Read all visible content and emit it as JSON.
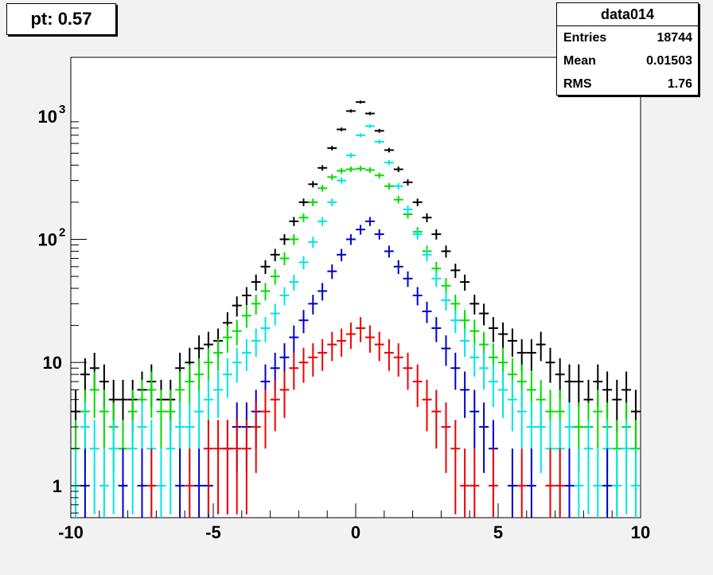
{
  "title_box": {
    "text": "pt: 0.57"
  },
  "stats_box": {
    "title": "data014",
    "rows": [
      {
        "label": "Entries",
        "value": "18744"
      },
      {
        "label": "Mean",
        "value": "0.01503"
      },
      {
        "label": "RMS",
        "value": "1.76"
      }
    ]
  },
  "chart_data": {
    "type": "scatter",
    "style": "histogram-errorbars",
    "title": "",
    "xlabel": "",
    "ylabel": "",
    "xlim": [
      -10,
      10
    ],
    "ylim": [
      0.55,
      3000
    ],
    "yscale": "log",
    "bin_width": 0.333,
    "x_ticks": [
      "-10",
      "-5",
      "0",
      "5",
      "10"
    ],
    "y_ticks": [
      {
        "base": "1",
        "exp": "",
        "value": 1
      },
      {
        "base": "10",
        "exp": "",
        "value": 10
      },
      {
        "base": "10",
        "exp": "2",
        "value": 100
      },
      {
        "base": "10",
        "exp": "3",
        "value": 1000
      }
    ],
    "grid": false,
    "legend": "none",
    "series": [
      {
        "color": "#000000",
        "points": [
          [
            -9.83,
            4
          ],
          [
            -9.5,
            8
          ],
          [
            -9.17,
            9
          ],
          [
            -8.83,
            7
          ],
          [
            -8.5,
            5
          ],
          [
            -8.17,
            5
          ],
          [
            -7.83,
            5
          ],
          [
            -7.5,
            6
          ],
          [
            -7.17,
            7
          ],
          [
            -6.83,
            5
          ],
          [
            -6.5,
            5
          ],
          [
            -6.17,
            9
          ],
          [
            -5.83,
            10
          ],
          [
            -5.5,
            13
          ],
          [
            -5.17,
            14
          ],
          [
            -4.83,
            15
          ],
          [
            -4.5,
            21
          ],
          [
            -4.17,
            29
          ],
          [
            -3.83,
            35
          ],
          [
            -3.5,
            45
          ],
          [
            -3.17,
            60
          ],
          [
            -2.83,
            75
          ],
          [
            -2.5,
            100
          ],
          [
            -2.17,
            140
          ],
          [
            -1.83,
            200
          ],
          [
            -1.5,
            280
          ],
          [
            -1.17,
            380
          ],
          [
            -0.83,
            550
          ],
          [
            -0.5,
            780
          ],
          [
            -0.17,
            1100
          ],
          [
            0.17,
            1300
          ],
          [
            0.5,
            1050
          ],
          [
            0.83,
            760
          ],
          [
            1.17,
            530
          ],
          [
            1.5,
            370
          ],
          [
            1.83,
            290
          ],
          [
            2.17,
            200
          ],
          [
            2.5,
            150
          ],
          [
            2.83,
            110
          ],
          [
            3.17,
            80
          ],
          [
            3.5,
            56
          ],
          [
            3.83,
            45
          ],
          [
            4.17,
            30
          ],
          [
            4.5,
            25
          ],
          [
            4.83,
            19
          ],
          [
            5.17,
            17
          ],
          [
            5.5,
            15
          ],
          [
            5.83,
            12
          ],
          [
            6.17,
            12
          ],
          [
            6.5,
            14
          ],
          [
            6.83,
            10
          ],
          [
            7.17,
            8
          ],
          [
            7.5,
            7
          ],
          [
            7.83,
            7
          ],
          [
            8.17,
            5
          ],
          [
            8.5,
            7
          ],
          [
            8.83,
            6
          ],
          [
            9.17,
            5
          ],
          [
            9.5,
            6
          ],
          [
            9.83,
            4
          ]
        ]
      },
      {
        "color": "#00dd00",
        "points": [
          [
            -9.83,
            2
          ],
          [
            -9.5,
            4
          ],
          [
            -9.17,
            6
          ],
          [
            -8.83,
            4
          ],
          [
            -8.5,
            3
          ],
          [
            -8.17,
            2
          ],
          [
            -7.83,
            4
          ],
          [
            -7.5,
            5
          ],
          [
            -7.17,
            6
          ],
          [
            -6.83,
            4
          ],
          [
            -6.5,
            4
          ],
          [
            -6.17,
            6
          ],
          [
            -5.83,
            7
          ],
          [
            -5.5,
            8
          ],
          [
            -5.17,
            10
          ],
          [
            -4.83,
            12
          ],
          [
            -4.5,
            16
          ],
          [
            -4.17,
            18
          ],
          [
            -3.83,
            24
          ],
          [
            -3.5,
            30
          ],
          [
            -3.17,
            38
          ],
          [
            -2.83,
            50
          ],
          [
            -2.5,
            70
          ],
          [
            -2.17,
            100
          ],
          [
            -1.83,
            150
          ],
          [
            -1.5,
            200
          ],
          [
            -1.17,
            260
          ],
          [
            -0.83,
            320
          ],
          [
            -0.5,
            360
          ],
          [
            -0.17,
            370
          ],
          [
            0.17,
            375
          ],
          [
            0.5,
            365
          ],
          [
            0.83,
            330
          ],
          [
            1.17,
            270
          ],
          [
            1.5,
            210
          ],
          [
            1.83,
            160
          ],
          [
            2.17,
            115
          ],
          [
            2.5,
            80
          ],
          [
            2.83,
            58
          ],
          [
            3.17,
            42
          ],
          [
            3.5,
            30
          ],
          [
            3.83,
            22
          ],
          [
            4.17,
            18
          ],
          [
            4.5,
            14
          ],
          [
            4.83,
            11
          ],
          [
            5.17,
            10
          ],
          [
            5.5,
            8
          ],
          [
            5.83,
            7
          ],
          [
            6.17,
            6
          ],
          [
            6.5,
            5
          ],
          [
            6.83,
            4
          ],
          [
            7.17,
            4
          ],
          [
            7.5,
            3
          ],
          [
            7.83,
            3
          ],
          [
            8.17,
            3
          ],
          [
            8.5,
            4
          ],
          [
            8.83,
            3
          ],
          [
            9.17,
            2
          ],
          [
            9.5,
            3
          ],
          [
            9.83,
            2
          ]
        ]
      },
      {
        "color": "#00e5e5",
        "points": [
          [
            -9.83,
            1
          ],
          [
            -9.5,
            3
          ],
          [
            -9.17,
            2
          ],
          [
            -8.83,
            1
          ],
          [
            -8.5,
            2
          ],
          [
            -8.17,
            1
          ],
          [
            -7.83,
            2
          ],
          [
            -7.5,
            3
          ],
          [
            -7.17,
            2
          ],
          [
            -6.83,
            1
          ],
          [
            -6.5,
            2
          ],
          [
            -6.17,
            3
          ],
          [
            -5.83,
            3
          ],
          [
            -5.5,
            4
          ],
          [
            -5.17,
            5
          ],
          [
            -4.83,
            6
          ],
          [
            -4.5,
            8
          ],
          [
            -4.17,
            10
          ],
          [
            -3.83,
            12
          ],
          [
            -3.5,
            15
          ],
          [
            -3.17,
            19
          ],
          [
            -2.83,
            25
          ],
          [
            -2.5,
            35
          ],
          [
            -2.17,
            45
          ],
          [
            -1.83,
            65
          ],
          [
            -1.5,
            95
          ],
          [
            -1.17,
            140
          ],
          [
            -0.83,
            200
          ],
          [
            -0.5,
            300
          ],
          [
            -0.17,
            480
          ],
          [
            0.17,
            700
          ],
          [
            0.5,
            830
          ],
          [
            0.83,
            620
          ],
          [
            1.17,
            420
          ],
          [
            1.5,
            270
          ],
          [
            1.83,
            175
          ],
          [
            2.17,
            110
          ],
          [
            2.5,
            75
          ],
          [
            2.83,
            48
          ],
          [
            3.17,
            32
          ],
          [
            3.5,
            22
          ],
          [
            3.83,
            15
          ],
          [
            4.17,
            11
          ],
          [
            4.5,
            9
          ],
          [
            4.83,
            7
          ],
          [
            5.17,
            6
          ],
          [
            5.5,
            5
          ],
          [
            5.83,
            4
          ],
          [
            6.17,
            3
          ],
          [
            6.5,
            3
          ],
          [
            6.83,
            2
          ],
          [
            7.17,
            2
          ],
          [
            7.5,
            3
          ],
          [
            7.83,
            1
          ],
          [
            8.17,
            2
          ],
          [
            8.5,
            1
          ],
          [
            8.83,
            2
          ],
          [
            9.17,
            1
          ],
          [
            9.5,
            2
          ],
          [
            9.83,
            1
          ]
        ]
      },
      {
        "color": "#0000cc",
        "points": [
          [
            -9.5,
            1
          ],
          [
            -8.17,
            1
          ],
          [
            -7.5,
            1
          ],
          [
            -6.17,
            1
          ],
          [
            -5.5,
            1
          ],
          [
            -5.17,
            1
          ],
          [
            -4.5,
            2
          ],
          [
            -4.17,
            3
          ],
          [
            -3.83,
            3
          ],
          [
            -3.5,
            4
          ],
          [
            -3.17,
            7
          ],
          [
            -2.83,
            9
          ],
          [
            -2.5,
            11
          ],
          [
            -2.17,
            16
          ],
          [
            -1.83,
            22
          ],
          [
            -1.5,
            30
          ],
          [
            -1.17,
            38
          ],
          [
            -0.83,
            55
          ],
          [
            -0.5,
            75
          ],
          [
            -0.17,
            100
          ],
          [
            0.17,
            120
          ],
          [
            0.5,
            140
          ],
          [
            0.83,
            110
          ],
          [
            1.17,
            80
          ],
          [
            1.5,
            60
          ],
          [
            1.83,
            48
          ],
          [
            2.17,
            35
          ],
          [
            2.5,
            26
          ],
          [
            2.83,
            19
          ],
          [
            3.17,
            13
          ],
          [
            3.5,
            9
          ],
          [
            3.83,
            6
          ],
          [
            4.17,
            4
          ],
          [
            4.5,
            3
          ],
          [
            4.83,
            2
          ],
          [
            5.5,
            1
          ],
          [
            6.17,
            1
          ],
          [
            7.5,
            1
          ],
          [
            8.83,
            1
          ]
        ]
      },
      {
        "color": "#ee0000",
        "points": [
          [
            -7.17,
            1
          ],
          [
            -5.83,
            1
          ],
          [
            -5.17,
            2
          ],
          [
            -4.83,
            2
          ],
          [
            -4.5,
            2
          ],
          [
            -4.17,
            2
          ],
          [
            -3.83,
            2
          ],
          [
            -3.5,
            3
          ],
          [
            -3.17,
            4
          ],
          [
            -2.83,
            5
          ],
          [
            -2.5,
            6
          ],
          [
            -2.17,
            9
          ],
          [
            -1.83,
            10
          ],
          [
            -1.5,
            11
          ],
          [
            -1.17,
            12
          ],
          [
            -0.83,
            14
          ],
          [
            -0.5,
            15
          ],
          [
            -0.17,
            17
          ],
          [
            0.17,
            19
          ],
          [
            0.5,
            16
          ],
          [
            0.83,
            14
          ],
          [
            1.17,
            12
          ],
          [
            1.5,
            11
          ],
          [
            1.83,
            9
          ],
          [
            2.17,
            7
          ],
          [
            2.5,
            5
          ],
          [
            2.83,
            4
          ],
          [
            3.17,
            3
          ],
          [
            3.5,
            2
          ],
          [
            3.83,
            1
          ],
          [
            4.17,
            1
          ],
          [
            4.83,
            1
          ],
          [
            5.83,
            1
          ],
          [
            6.83,
            1
          ],
          [
            7.17,
            1
          ]
        ]
      }
    ]
  }
}
